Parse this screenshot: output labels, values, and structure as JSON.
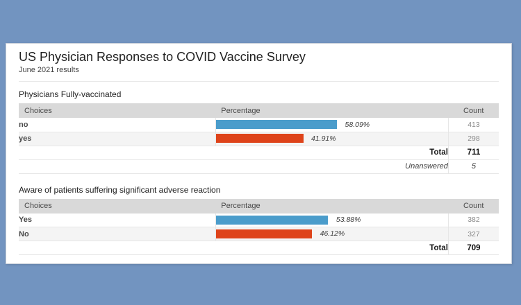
{
  "page": {
    "title": "US Physician Responses to COVID Vaccine Survey",
    "subtitle": "June 2021 results"
  },
  "columns": {
    "choices": "Choices",
    "percentage": "Percentage",
    "count": "Count"
  },
  "labels": {
    "total": "Total",
    "unanswered": "Unanswered"
  },
  "colors": {
    "background": "#7294C0",
    "panel": "#FFFFFF",
    "header_bg": "#D9D9D9",
    "row_alt_bg": "#F4F4F4",
    "bar_blue": "#4A9CCB",
    "bar_red": "#DE431A"
  },
  "sections": [
    {
      "title": "Physicians Fully-vaccinated",
      "rows": [
        {
          "choice": "no",
          "percent": "58.09%",
          "percent_value": 58.09,
          "count": "413",
          "color": "#4A9CCB"
        },
        {
          "choice": "yes",
          "percent": "41.91%",
          "percent_value": 41.91,
          "count": "298",
          "color": "#DE431A"
        }
      ],
      "total": "711",
      "unanswered": "5"
    },
    {
      "title": "Aware of patients suffering significant adverse reaction",
      "rows": [
        {
          "choice": "Yes",
          "percent": "53.88%",
          "percent_value": 53.88,
          "count": "382",
          "color": "#4A9CCB"
        },
        {
          "choice": "No",
          "percent": "46.12%",
          "percent_value": 46.12,
          "count": "327",
          "color": "#DE431A"
        }
      ],
      "total": "709"
    }
  ],
  "chart_data": [
    {
      "type": "bar",
      "orientation": "horizontal",
      "title": "Physicians Fully-vaccinated",
      "categories": [
        "no",
        "yes"
      ],
      "series": [
        {
          "name": "Percentage",
          "values": [
            58.09,
            41.91
          ],
          "unit": "%"
        },
        {
          "name": "Count",
          "values": [
            413,
            298
          ]
        }
      ],
      "bar_colors": [
        "#4A9CCB",
        "#DE431A"
      ],
      "total_count": 711,
      "unanswered": 5,
      "xlim": [
        0,
        100
      ],
      "grid": false,
      "legend": false
    },
    {
      "type": "bar",
      "orientation": "horizontal",
      "title": "Aware of patients suffering significant adverse reaction",
      "categories": [
        "Yes",
        "No"
      ],
      "series": [
        {
          "name": "Percentage",
          "values": [
            53.88,
            46.12
          ],
          "unit": "%"
        },
        {
          "name": "Count",
          "values": [
            382,
            327
          ]
        }
      ],
      "bar_colors": [
        "#4A9CCB",
        "#DE431A"
      ],
      "total_count": 709,
      "xlim": [
        0,
        100
      ],
      "grid": false,
      "legend": false
    }
  ]
}
